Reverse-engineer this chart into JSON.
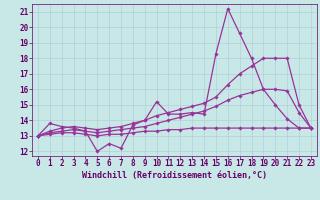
{
  "xlabel": "Windchill (Refroidissement éolien,°C)",
  "xlim": [
    -0.5,
    23.5
  ],
  "ylim": [
    11.7,
    21.5
  ],
  "yticks": [
    12,
    13,
    14,
    15,
    16,
    17,
    18,
    19,
    20,
    21
  ],
  "xticks": [
    0,
    1,
    2,
    3,
    4,
    5,
    6,
    7,
    8,
    9,
    10,
    11,
    12,
    13,
    14,
    15,
    16,
    17,
    18,
    19,
    20,
    21,
    22,
    23
  ],
  "background_color": "#c8e8e8",
  "grid_color": "#b0d0d8",
  "line_color": "#993399",
  "lines": [
    {
      "x": [
        0,
        1,
        2,
        3,
        4,
        5,
        6,
        7,
        8,
        9,
        10,
        11,
        12,
        13,
        14,
        15,
        16,
        17,
        18,
        19,
        20,
        21,
        22,
        23
      ],
      "y": [
        13.0,
        13.8,
        13.6,
        13.5,
        13.3,
        12.0,
        12.5,
        12.2,
        13.7,
        14.0,
        15.2,
        14.4,
        14.4,
        14.5,
        14.4,
        18.3,
        21.2,
        19.6,
        18.0,
        16.0,
        15.0,
        14.1,
        13.5,
        13.5
      ]
    },
    {
      "x": [
        0,
        1,
        2,
        3,
        4,
        5,
        6,
        7,
        8,
        9,
        10,
        11,
        12,
        13,
        14,
        15,
        16,
        17,
        18,
        19,
        20,
        21,
        22,
        23
      ],
      "y": [
        13.0,
        13.3,
        13.5,
        13.6,
        13.5,
        13.4,
        13.5,
        13.6,
        13.8,
        14.0,
        14.3,
        14.5,
        14.7,
        14.9,
        15.1,
        15.5,
        16.3,
        17.0,
        17.5,
        18.0,
        18.0,
        18.0,
        15.0,
        13.5
      ]
    },
    {
      "x": [
        0,
        1,
        2,
        3,
        4,
        5,
        6,
        7,
        8,
        9,
        10,
        11,
        12,
        13,
        14,
        15,
        16,
        17,
        18,
        19,
        20,
        21,
        22,
        23
      ],
      "y": [
        13.0,
        13.2,
        13.3,
        13.4,
        13.3,
        13.2,
        13.3,
        13.4,
        13.5,
        13.6,
        13.8,
        14.0,
        14.2,
        14.4,
        14.6,
        14.9,
        15.3,
        15.6,
        15.8,
        16.0,
        16.0,
        15.9,
        14.5,
        13.5
      ]
    },
    {
      "x": [
        0,
        1,
        2,
        3,
        4,
        5,
        6,
        7,
        8,
        9,
        10,
        11,
        12,
        13,
        14,
        15,
        16,
        17,
        18,
        19,
        20,
        21,
        22,
        23
      ],
      "y": [
        13.0,
        13.1,
        13.2,
        13.2,
        13.1,
        13.0,
        13.1,
        13.1,
        13.2,
        13.3,
        13.3,
        13.4,
        13.4,
        13.5,
        13.5,
        13.5,
        13.5,
        13.5,
        13.5,
        13.5,
        13.5,
        13.5,
        13.5,
        13.5
      ]
    }
  ],
  "marker": "D",
  "marker_size": 1.8,
  "line_width": 0.9,
  "font_color": "#660066",
  "tick_fontsize": 5.5,
  "label_fontsize": 6.0
}
